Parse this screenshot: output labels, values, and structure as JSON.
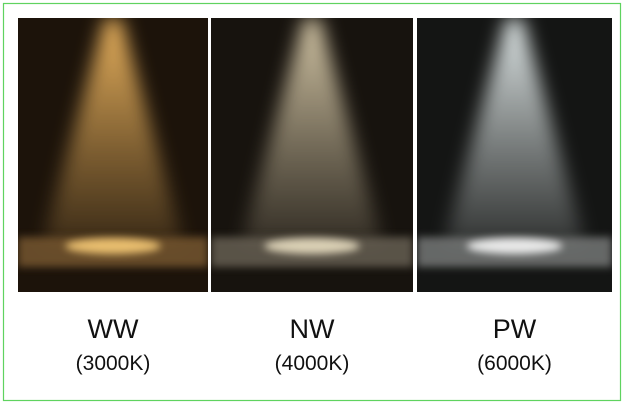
{
  "panels": [
    {
      "label": "WW",
      "temperature": "(3000K)"
    },
    {
      "label": "NW",
      "temperature": "(4000K)"
    },
    {
      "label": "PW",
      "temperature": "(6000K)"
    }
  ]
}
